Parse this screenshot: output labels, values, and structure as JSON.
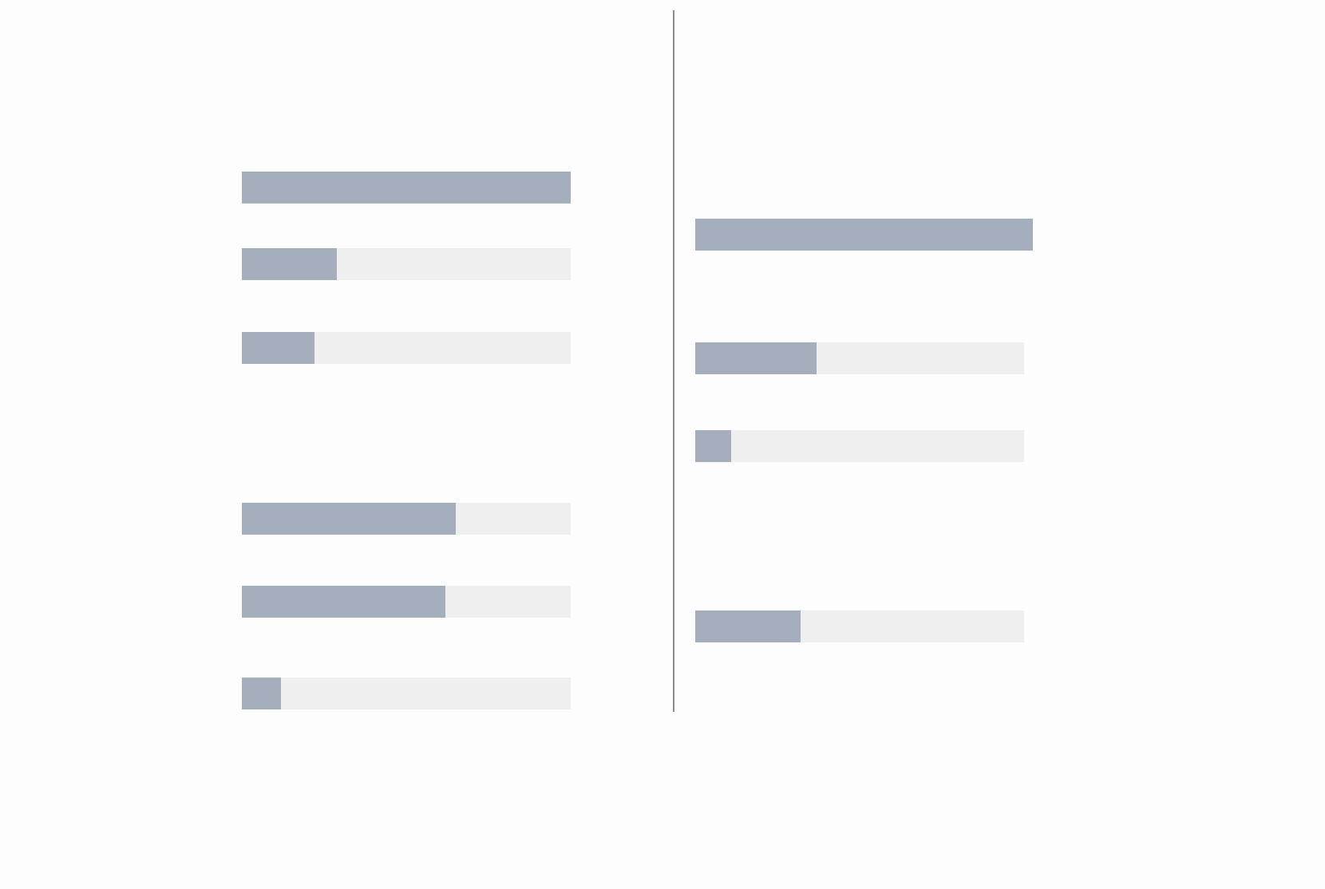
{
  "left_panel": {
    "progress": [
      100,
      29,
      22,
      65,
      62,
      12
    ]
  },
  "right_panel": {
    "progress": [
      100,
      37,
      11,
      32
    ]
  }
}
